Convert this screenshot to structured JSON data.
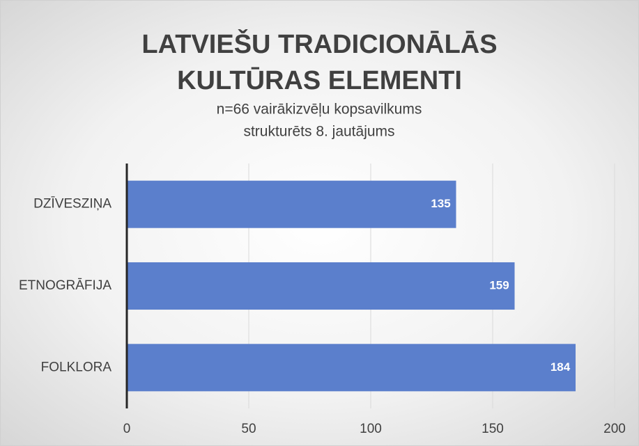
{
  "chart_data": {
    "type": "barh",
    "title": "LATVIEŠU TRADICIONĀLĀS KULTŪRAS ELEMENTI",
    "subtitle": [
      "n=66  vairākizvēļu kopsavilkums",
      "strukturēts 8. jautājums"
    ],
    "categories": [
      "DZĪVESZIŅA",
      "ETNOGRĀFIJA",
      "FOLKLORA"
    ],
    "values": [
      135,
      159,
      184
    ],
    "color": "#5b7fcc",
    "xlim": [
      0,
      200
    ],
    "xticks": [
      0,
      50,
      100,
      150,
      200
    ],
    "grid": true
  }
}
